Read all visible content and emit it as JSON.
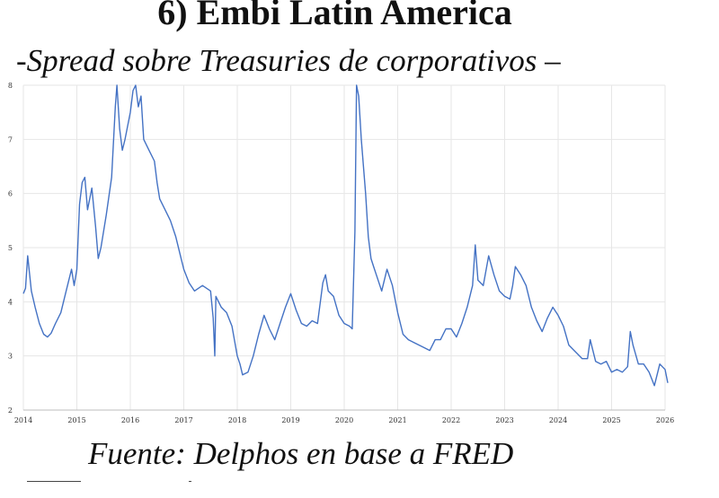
{
  "title": "6) Embi Latin America",
  "subtitle": "-Spread sobre Treasuries de corporativos –",
  "source": "Fuente: Delphos en base a FRED",
  "colors": {
    "series": "#4472c4",
    "grid": "#e6e6e6",
    "text": "#111111"
  },
  "chart_data": {
    "type": "line",
    "title": "",
    "xlabel": "",
    "ylabel": "",
    "xlim": [
      2014,
      2026
    ],
    "ylim": [
      2,
      8
    ],
    "grid": true,
    "legend": "none",
    "x_ticks": [
      "2014",
      "2015",
      "2016",
      "2017",
      "2018",
      "2019",
      "2020",
      "2021",
      "2022",
      "2023",
      "2024",
      "2025",
      "2026"
    ],
    "y_ticks": [
      "2",
      "3",
      "4",
      "5",
      "6",
      "7",
      "8"
    ],
    "series": [
      {
        "x": [
          2014.0,
          2014.04,
          2014.08,
          2014.15,
          2014.22,
          2014.3,
          2014.38,
          2014.45,
          2014.52,
          2014.6,
          2014.7,
          2014.8,
          2014.9,
          2014.95,
          2015.0,
          2015.05,
          2015.1,
          2015.15,
          2015.2,
          2015.28,
          2015.35,
          2015.4,
          2015.45,
          2015.55,
          2015.65,
          2015.72,
          2015.75,
          2015.8,
          2015.85,
          2015.9,
          2016.0,
          2016.05,
          2016.1,
          2016.15,
          2016.2,
          2016.25,
          2016.35,
          2016.45,
          2016.5,
          2016.55,
          2016.65,
          2016.75,
          2016.85,
          2016.95,
          2017.0,
          2017.1,
          2017.2,
          2017.35,
          2017.5,
          2017.55,
          2017.58,
          2017.6,
          2017.7,
          2017.8,
          2017.9,
          2018.0,
          2018.05,
          2018.1,
          2018.2,
          2018.3,
          2018.4,
          2018.5,
          2018.6,
          2018.7,
          2018.8,
          2018.9,
          2019.0,
          2019.1,
          2019.2,
          2019.3,
          2019.4,
          2019.5,
          2019.6,
          2019.65,
          2019.7,
          2019.8,
          2019.9,
          2020.0,
          2020.1,
          2020.15,
          2020.2,
          2020.23,
          2020.27,
          2020.32,
          2020.4,
          2020.45,
          2020.5,
          2020.55,
          2020.6,
          2020.7,
          2020.8,
          2020.9,
          2021.0,
          2021.1,
          2021.2,
          2021.3,
          2021.4,
          2021.5,
          2021.6,
          2021.7,
          2021.8,
          2021.9,
          2022.0,
          2022.1,
          2022.2,
          2022.3,
          2022.4,
          2022.45,
          2022.5,
          2022.6,
          2022.7,
          2022.8,
          2022.9,
          2023.0,
          2023.1,
          2023.15,
          2023.2,
          2023.3,
          2023.4,
          2023.5,
          2023.6,
          2023.7,
          2023.8,
          2023.9,
          2024.0,
          2024.1,
          2024.2,
          2024.3,
          2024.45,
          2024.55,
          2024.6,
          2024.7,
          2024.8,
          2024.9,
          2025.0,
          2025.1,
          2025.2,
          2025.3,
          2025.35,
          2025.4,
          2025.5,
          2025.6,
          2025.7,
          2025.8,
          2025.9,
          2026.0,
          2026.05
        ],
        "values": [
          4.15,
          4.25,
          4.85,
          4.2,
          3.9,
          3.6,
          3.4,
          3.35,
          3.42,
          3.6,
          3.8,
          4.2,
          4.6,
          4.3,
          4.6,
          5.8,
          6.2,
          6.3,
          5.7,
          6.1,
          5.4,
          4.8,
          5.0,
          5.6,
          6.3,
          7.6,
          8.0,
          7.2,
          6.8,
          7.0,
          7.5,
          7.9,
          8.0,
          7.6,
          7.8,
          7.0,
          6.8,
          6.6,
          6.2,
          5.9,
          5.7,
          5.5,
          5.2,
          4.8,
          4.6,
          4.35,
          4.2,
          4.3,
          4.2,
          3.7,
          3.0,
          4.1,
          3.9,
          3.8,
          3.55,
          3.0,
          2.85,
          2.65,
          2.7,
          3.0,
          3.4,
          3.75,
          3.5,
          3.3,
          3.6,
          3.9,
          4.15,
          3.85,
          3.6,
          3.55,
          3.65,
          3.6,
          4.35,
          4.5,
          4.2,
          4.1,
          3.75,
          3.6,
          3.55,
          3.5,
          5.3,
          8.0,
          7.8,
          7.0,
          6.0,
          5.2,
          4.8,
          4.65,
          4.5,
          4.2,
          4.6,
          4.3,
          3.8,
          3.4,
          3.3,
          3.25,
          3.2,
          3.15,
          3.1,
          3.3,
          3.3,
          3.5,
          3.5,
          3.35,
          3.6,
          3.9,
          4.3,
          5.05,
          4.4,
          4.3,
          4.85,
          4.5,
          4.2,
          4.1,
          4.05,
          4.3,
          4.65,
          4.5,
          4.3,
          3.9,
          3.65,
          3.45,
          3.7,
          3.9,
          3.75,
          3.55,
          3.2,
          3.1,
          2.95,
          2.95,
          3.3,
          2.9,
          2.85,
          2.9,
          2.7,
          2.75,
          2.7,
          2.8,
          3.45,
          3.2,
          2.85,
          2.85,
          2.7,
          2.45,
          2.85,
          2.75,
          2.5
        ]
      }
    ]
  }
}
